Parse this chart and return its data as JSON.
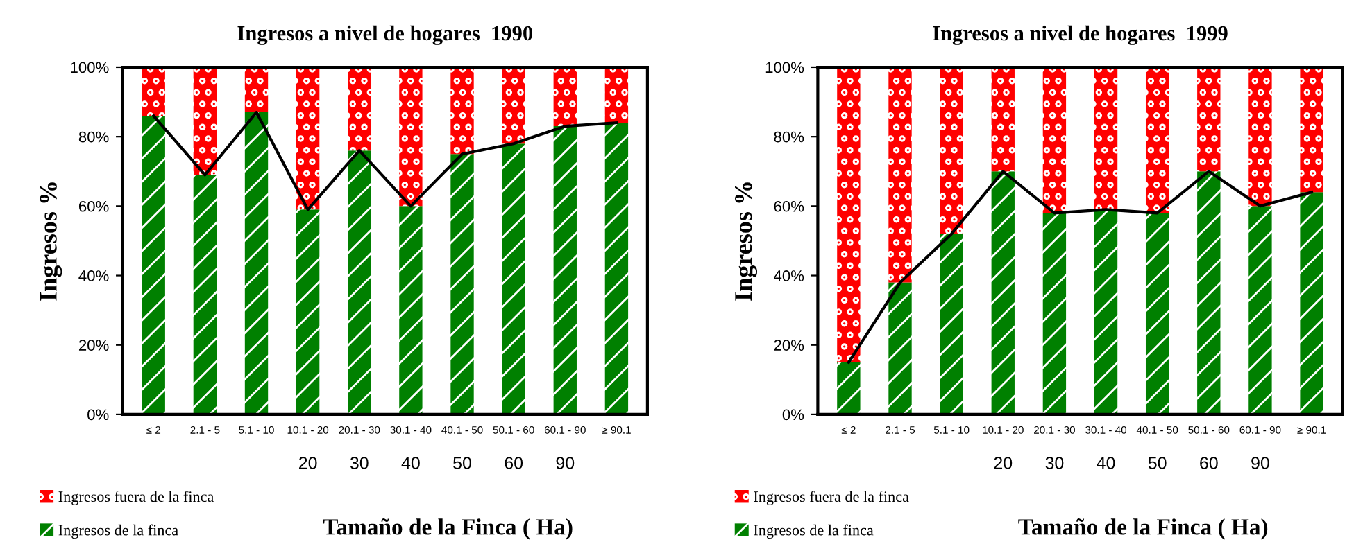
{
  "chart_data": [
    {
      "type": "bar",
      "stacked": true,
      "title": "Ingresos a nivel de hogares  1990",
      "xlabel": "Tamaño de la Finca ( Ha)",
      "ylabel": "Ingresos %",
      "categories": [
        "≤ 2",
        "2.1 - 5",
        "5.1 - 10",
        "10.1 - 20",
        "20.1 - 30",
        "30.1 - 40",
        "40.1 - 50",
        "50.1 - 60",
        "60.1 - 90",
        "≥ 90.1"
      ],
      "series": [
        {
          "name": "Ingresos de la finca",
          "color": "#008000",
          "values": [
            86,
            69,
            87,
            59,
            76,
            60,
            75,
            78,
            83,
            84
          ]
        },
        {
          "name": "Ingresos fuera de la finca",
          "color": "#ff0000",
          "values": [
            14,
            31,
            13,
            41,
            24,
            40,
            25,
            22,
            17,
            16
          ]
        },
        {
          "type": "line",
          "color": "#000000",
          "values": [
            86,
            69,
            87,
            59,
            76,
            60,
            75,
            78,
            83,
            84
          ]
        }
      ],
      "ylim": [
        0,
        100
      ],
      "yticks": [
        {
          "value": 0,
          "label": "0%"
        },
        {
          "value": 20,
          "label": "20%"
        },
        {
          "value": 40,
          "label": "40%"
        },
        {
          "value": 60,
          "label": "60%"
        },
        {
          "value": 80,
          "label": "80%"
        },
        {
          "value": 100,
          "label": "100%"
        }
      ],
      "annotations": [
        "20",
        "30",
        "40",
        "50",
        "60",
        "90"
      ],
      "legend": "bottom left",
      "grid": false,
      "marker": "none",
      "line_style": "solid"
    },
    {
      "type": "bar",
      "stacked": true,
      "title": "Ingresos a nivel de hogares  1999",
      "xlabel": "Tamaño de la Finca ( Ha)",
      "ylabel": "Ingresos %",
      "categories": [
        "≤ 2",
        "2.1 - 5",
        "5.1 - 10",
        "10.1 - 20",
        "20.1 - 30",
        "30.1 - 40",
        "40.1 - 50",
        "50.1 - 60",
        "60.1 - 90",
        "≥ 90.1"
      ],
      "series": [
        {
          "name": "Ingresos de la finca",
          "color": "#008000",
          "values": [
            15,
            38,
            52,
            70,
            58,
            59,
            58,
            70,
            60,
            64
          ]
        },
        {
          "name": "Ingresos fuera de la finca",
          "color": "#ff0000",
          "values": [
            85,
            62,
            48,
            30,
            42,
            41,
            42,
            30,
            40,
            36
          ]
        },
        {
          "type": "line",
          "color": "#000000",
          "values": [
            15,
            38,
            52,
            70,
            58,
            59,
            58,
            70,
            60,
            64
          ]
        }
      ],
      "ylim": [
        0,
        100
      ],
      "yticks": [
        {
          "value": 0,
          "label": "0%"
        },
        {
          "value": 20,
          "label": "20%"
        },
        {
          "value": 40,
          "label": "40%"
        },
        {
          "value": 60,
          "label": "60%"
        },
        {
          "value": 80,
          "label": "80%"
        },
        {
          "value": 100,
          "label": "100%"
        }
      ],
      "annotations": [
        "20",
        "30",
        "40",
        "50",
        "60",
        "90"
      ],
      "legend": "bottom left",
      "grid": false,
      "marker": "none",
      "line_style": "solid"
    }
  ]
}
